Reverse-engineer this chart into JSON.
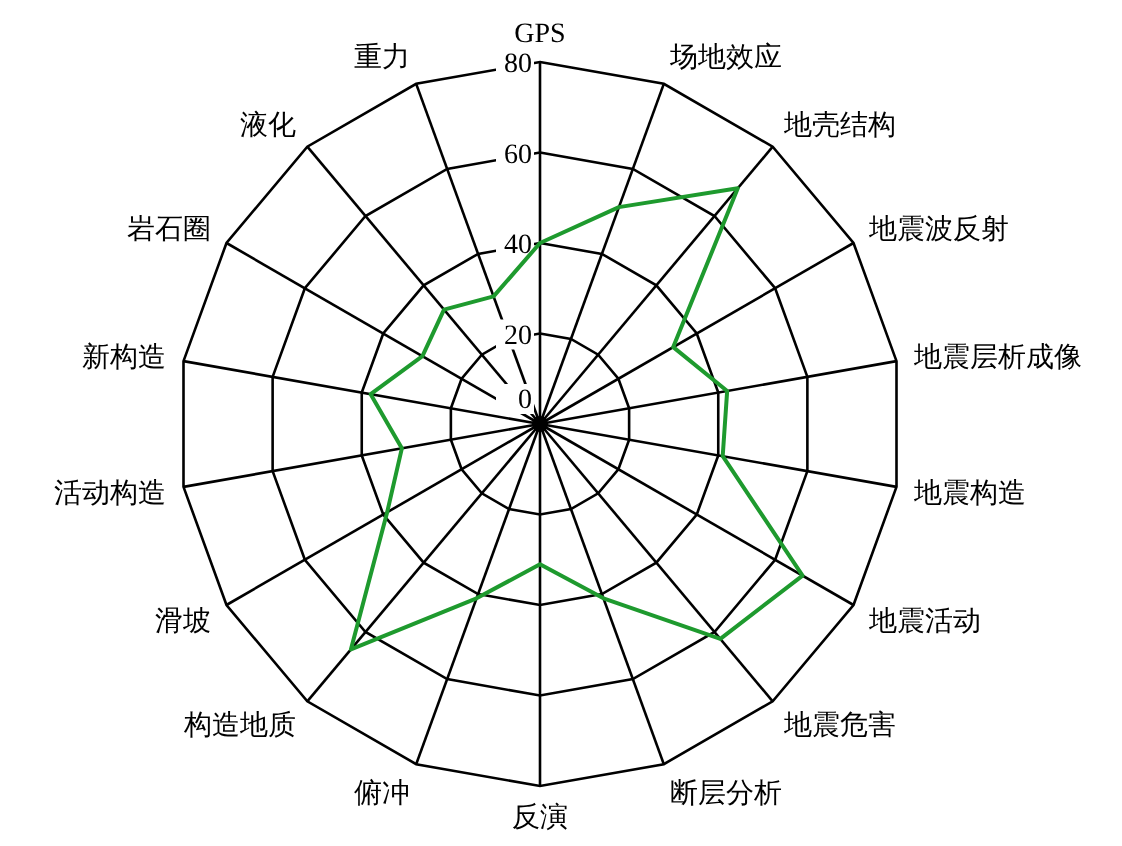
{
  "chart_data": {
    "type": "radar",
    "categories": [
      "GPS",
      "场地效应",
      "地壳结构",
      "地震波反射",
      "地震层析成像",
      "地震构造",
      "地震活动",
      "地震危害",
      "断层分析",
      "反演",
      "俯冲",
      "构造地质",
      "滑坡",
      "活动构造",
      "新构造",
      "岩石圈",
      "液化",
      "重力"
    ],
    "series": [
      {
        "color": "#1e9a2e",
        "values": [
          40,
          51,
          68,
          34,
          42,
          41,
          67,
          62,
          41,
          31,
          41,
          65,
          39,
          31,
          38,
          30,
          33,
          30
        ]
      }
    ],
    "ylim": [
      0,
      80
    ],
    "yticks": [
      0,
      20,
      40,
      60,
      80
    ],
    "grid": true,
    "marker": "none",
    "line_style": "solid"
  }
}
